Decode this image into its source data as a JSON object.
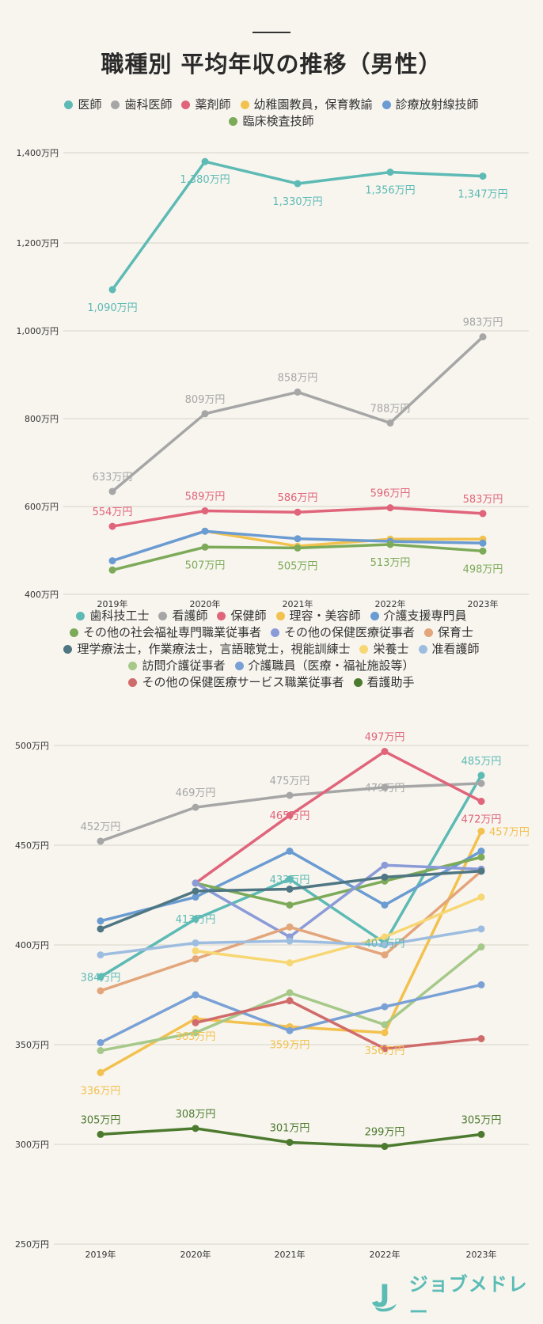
{
  "title": "職種別 平均年収の推移（男性）",
  "logo": {
    "text": "ジョブメドレー"
  },
  "chart_data": [
    {
      "type": "line",
      "x": [
        "2019年",
        "2020年",
        "2021年",
        "2022年",
        "2023年"
      ],
      "yticks": [
        "400万円",
        "600万円",
        "800万円",
        "1,000万円",
        "1,200万円",
        "1,400万円"
      ],
      "ylim": [
        400,
        1450
      ],
      "legend_rows": [
        [
          0,
          1,
          2,
          3,
          4
        ],
        [
          5
        ]
      ],
      "series": [
        {
          "name": "医師",
          "color": "#5dbab4",
          "values": [
            1090,
            1380,
            1330,
            1356,
            1347
          ],
          "labels": [
            "1,090万円",
            "1,380万円",
            "1,330万円",
            "1,356万円",
            "1,347万円"
          ],
          "label_pos": [
            "below",
            "below",
            "below",
            "below",
            "below"
          ]
        },
        {
          "name": "歯科医師",
          "color": "#a6a6a6",
          "values": [
            633,
            809,
            858,
            788,
            983
          ],
          "labels": [
            "633万円",
            "809万円",
            "858万円",
            "788万円",
            "983万円"
          ],
          "label_pos": [
            "above",
            "above",
            "above",
            "above",
            "above"
          ]
        },
        {
          "name": "薬剤師",
          "color": "#e0647a",
          "values": [
            554,
            589,
            586,
            596,
            583
          ],
          "labels": [
            "554万円",
            "589万円",
            "586万円",
            "596万円",
            "583万円"
          ],
          "label_pos": [
            "above",
            "above",
            "above",
            "above",
            "above"
          ]
        },
        {
          "name": "幼稚園教員，保育教諭",
          "color": "#f2c14e",
          "values": [
            null,
            543,
            509,
            525,
            525
          ],
          "labels": [
            "",
            "",
            "",
            "",
            ""
          ],
          "label_pos": []
        },
        {
          "name": "診療放射線技師",
          "color": "#6a9bd1",
          "values": [
            476,
            543,
            526,
            520,
            516
          ],
          "labels": [
            "",
            "",
            "",
            "",
            ""
          ],
          "label_pos": []
        },
        {
          "name": "臨床検査技師",
          "color": "#7caa58",
          "values": [
            455,
            507,
            505,
            513,
            498
          ],
          "labels": [
            "",
            "507万円",
            "505万円",
            "513万円",
            "498万円"
          ],
          "label_pos": [
            "",
            "below",
            "below",
            "below",
            "below"
          ]
        }
      ]
    },
    {
      "type": "line",
      "x": [
        "2019年",
        "2020年",
        "2021年",
        "2022年",
        "2023年"
      ],
      "yticks": [
        "250万円",
        "300万円",
        "350万円",
        "400万円",
        "450万円",
        "500万円"
      ],
      "ylim": [
        250,
        500
      ],
      "legend_rows": [
        [
          0,
          1,
          2,
          3,
          4
        ],
        [
          5,
          6,
          7
        ],
        [
          8,
          9,
          10
        ],
        [
          11,
          12
        ],
        [
          13,
          14
        ]
      ],
      "series": [
        {
          "name": "歯科技工士",
          "color": "#5dbab4",
          "values": [
            384,
            413,
            433,
            401,
            485
          ],
          "labels": [
            "384万円",
            "413万円",
            "433万円",
            "401万円",
            "485万円"
          ],
          "label_pos": [
            "on",
            "on",
            "on",
            "on",
            "above"
          ]
        },
        {
          "name": "看護師",
          "color": "#a6a6a6",
          "values": [
            452,
            469,
            475,
            479,
            481
          ],
          "labels": [
            "452万円",
            "469万円",
            "475万円",
            "479万円",
            ""
          ],
          "label_pos": [
            "above",
            "above",
            "above",
            "on",
            ""
          ]
        },
        {
          "name": "保健師",
          "color": "#e0647a",
          "values": [
            null,
            431,
            465,
            497,
            472
          ],
          "labels": [
            "",
            "",
            "465万円",
            "497万円",
            "472万円"
          ],
          "label_pos": [
            "",
            "",
            "on",
            "above",
            "below"
          ]
        },
        {
          "name": "理容・美容師",
          "color": "#f2c14e",
          "values": [
            336,
            363,
            359,
            356,
            457
          ],
          "labels": [
            "336万円",
            "363万円",
            "359万円",
            "356万円",
            "457万円"
          ],
          "label_pos": [
            "below",
            "below",
            "below",
            "below",
            "right"
          ]
        },
        {
          "name": "介護支援専門員",
          "color": "#6a9bd1",
          "values": [
            412,
            424,
            447,
            420,
            447
          ],
          "labels": [
            "",
            "",
            "",
            "",
            ""
          ],
          "label_pos": []
        },
        {
          "name": "その他の社会福祉専門職業従事者",
          "color": "#7caa58",
          "values": [
            null,
            431,
            420,
            432,
            444
          ],
          "labels": [
            "",
            "",
            "",
            "",
            ""
          ],
          "label_pos": []
        },
        {
          "name": "その他の保健医療従事者",
          "color": "#8b9bd8",
          "values": [
            null,
            431,
            404,
            440,
            438
          ],
          "labels": [
            "",
            "",
            "",
            "",
            ""
          ],
          "label_pos": []
        },
        {
          "name": "保育士",
          "color": "#e3a57a",
          "values": [
            377,
            393,
            409,
            395,
            437
          ],
          "labels": [
            "",
            "",
            "",
            "",
            ""
          ],
          "label_pos": []
        },
        {
          "name": "理学療法士，作業療法士，言語聴覚士，視能訓練士",
          "color": "#4f7683",
          "values": [
            408,
            427,
            428,
            434,
            437
          ],
          "labels": [
            "",
            "",
            "",
            "",
            ""
          ],
          "label_pos": []
        },
        {
          "name": "栄養士",
          "color": "#f7d774",
          "values": [
            null,
            397,
            391,
            404,
            424
          ],
          "labels": [
            "",
            "",
            "",
            "",
            ""
          ],
          "label_pos": []
        },
        {
          "name": "准看護師",
          "color": "#9dbde0",
          "values": [
            395,
            401,
            402,
            400,
            408
          ],
          "labels": [
            "",
            "",
            "",
            "",
            ""
          ],
          "label_pos": []
        },
        {
          "name": "訪問介護従事者",
          "color": "#a6c98a",
          "values": [
            347,
            356,
            376,
            360,
            399
          ],
          "labels": [
            "",
            "",
            "",
            "",
            ""
          ],
          "label_pos": []
        },
        {
          "name": "介護職員（医療・福祉施設等）",
          "color": "#7aa1d6",
          "values": [
            351,
            375,
            357,
            369,
            380
          ],
          "labels": [
            "",
            "",
            "",
            "",
            ""
          ],
          "label_pos": []
        },
        {
          "name": "その他の保健医療サービス職業従事者",
          "color": "#d06b6b",
          "values": [
            null,
            361,
            372,
            348,
            353
          ],
          "labels": [
            "",
            "",
            "",
            "",
            ""
          ],
          "label_pos": []
        },
        {
          "name": "看護助手",
          "color": "#4c7a2e",
          "values": [
            305,
            308,
            301,
            299,
            305
          ],
          "labels": [
            "305万円",
            "308万円",
            "301万円",
            "299万円",
            "305万円"
          ],
          "label_pos": [
            "above",
            "above",
            "above",
            "above",
            "above"
          ]
        }
      ]
    }
  ]
}
